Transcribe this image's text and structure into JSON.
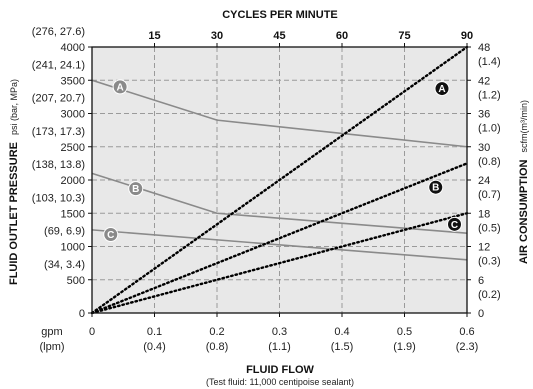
{
  "chart_data": {
    "type": "line",
    "title": "CYCLES PER MINUTE",
    "top_ticks": [
      "15",
      "30",
      "45",
      "60",
      "75",
      "90"
    ],
    "xlabel": "FLUID FLOW",
    "xsublabel": "(Test fluid: 11,000 centipoise sealant)",
    "x_unit_primary": "gpm",
    "x_unit_secondary": "(lpm)",
    "x_ticks": [
      {
        "v": 0,
        "label": "0",
        "sub": ""
      },
      {
        "v": 0.1,
        "label": "0.1",
        "sub": "(0.4)"
      },
      {
        "v": 0.2,
        "label": "0.2",
        "sub": "(0.8)"
      },
      {
        "v": 0.3,
        "label": "0.3",
        "sub": "(1.1)"
      },
      {
        "v": 0.4,
        "label": "0.4",
        "sub": "(1.5)"
      },
      {
        "v": 0.5,
        "label": "0.5",
        "sub": "(1.9)"
      },
      {
        "v": 0.6,
        "label": "0.6",
        "sub": "(2.3)"
      }
    ],
    "xlim": [
      0,
      0.6
    ],
    "ylabel_bold": "FLUID OUTLET PRESSURE",
    "ylabel_unit": "psi (bar, MPa)",
    "ylim": [
      0,
      4000
    ],
    "y_ticks": [
      {
        "v": 0,
        "label": "0",
        "sub": ""
      },
      {
        "v": 500,
        "label": "500",
        "sub": "(34, 3.4)"
      },
      {
        "v": 1000,
        "label": "1000",
        "sub": "(69, 6.9)"
      },
      {
        "v": 1500,
        "label": "1500",
        "sub": "(103, 10.3)"
      },
      {
        "v": 2000,
        "label": "2000",
        "sub": "(138, 13.8)"
      },
      {
        "v": 2500,
        "label": "2500",
        "sub": "(173, 17.3)"
      },
      {
        "v": 3000,
        "label": "3000",
        "sub": "(207, 20.7)"
      },
      {
        "v": 3500,
        "label": "3500",
        "sub": "(241, 24.1)"
      },
      {
        "v": 4000,
        "label": "4000",
        "sub": "(276, 27.6)"
      }
    ],
    "y2label_bold": "AIR CONSUMPTION",
    "y2label_unit": "scfm(m³/min)",
    "y2lim": [
      0,
      48
    ],
    "y2_ticks": [
      {
        "v": 0,
        "label": "0",
        "sub": ""
      },
      {
        "v": 6,
        "label": "6",
        "sub": "(0.2)"
      },
      {
        "v": 12,
        "label": "12",
        "sub": "(0.3)"
      },
      {
        "v": 18,
        "label": "18",
        "sub": "(0.5)"
      },
      {
        "v": 24,
        "label": "24",
        "sub": "(0.7)"
      },
      {
        "v": 30,
        "label": "30",
        "sub": "(0.8)"
      },
      {
        "v": 36,
        "label": "36",
        "sub": "(1.0)"
      },
      {
        "v": 42,
        "label": "42",
        "sub": "(1.2)"
      },
      {
        "v": 48,
        "label": "48",
        "sub": "(1.4)"
      }
    ],
    "pressure_series": [
      {
        "name": "A",
        "x": [
          0,
          0.2,
          0.6
        ],
        "y": [
          3500,
          2900,
          2500
        ]
      },
      {
        "name": "B",
        "x": [
          0,
          0.2,
          0.6
        ],
        "y": [
          2100,
          1500,
          1200
        ]
      },
      {
        "name": "C",
        "x": [
          0,
          0.6
        ],
        "y": [
          1250,
          800
        ]
      }
    ],
    "air_series": [
      {
        "name": "A",
        "x": [
          0,
          0.6
        ],
        "y": [
          0,
          48
        ]
      },
      {
        "name": "B",
        "x": [
          0,
          0.6
        ],
        "y": [
          0,
          27
        ]
      },
      {
        "name": "C",
        "x": [
          0,
          0.6
        ],
        "y": [
          0,
          18
        ]
      }
    ],
    "labels": {
      "pressure": [
        {
          "name": "A",
          "x": 0.045,
          "y": 3400
        },
        {
          "name": "B",
          "x": 0.07,
          "y": 1870
        },
        {
          "name": "C",
          "x": 0.03,
          "y": 1180
        }
      ],
      "air": [
        {
          "name": "A",
          "x": 0.56,
          "y": 40.5
        },
        {
          "name": "B",
          "x": 0.55,
          "y": 22.7
        },
        {
          "name": "C",
          "x": 0.58,
          "y": 16.0
        }
      ]
    },
    "grid": true,
    "colors": {
      "plot_bg": "#e8e8e8",
      "grid": "#9a9a9a",
      "pressure_line": "#8a8a8a",
      "pressure_marker": "#8a8a8a",
      "air_line": "#000000",
      "air_marker": "#111111"
    }
  }
}
